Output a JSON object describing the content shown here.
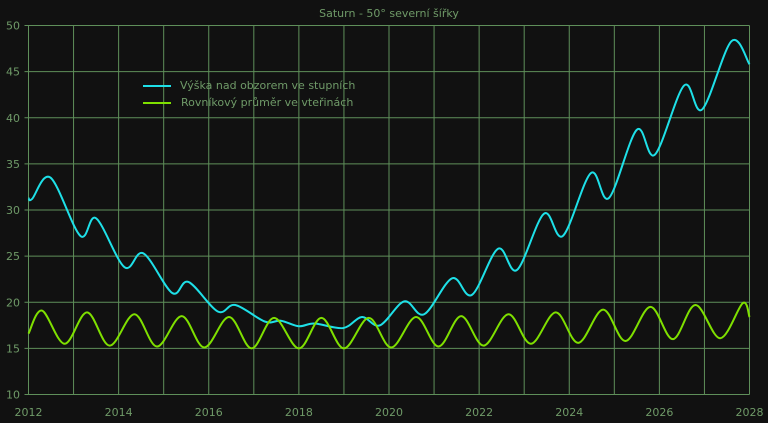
{
  "chart_data": {
    "type": "line",
    "title": "Saturn - 50° severní šířky",
    "xlabel": "",
    "ylabel": "",
    "xlim": [
      2012,
      2028
    ],
    "ylim": [
      10,
      50
    ],
    "grid": true,
    "legend_position": "top-left",
    "x_ticks": [
      "2012",
      "2014",
      "2016",
      "2018",
      "2020",
      "2022",
      "2024",
      "2026",
      "2028"
    ],
    "y_ticks": [
      "10",
      "15",
      "20",
      "25",
      "30",
      "35",
      "40",
      "45",
      "50"
    ],
    "colors": {
      "background": "#111111",
      "grid": "#5f8f5a",
      "text": "#6f9a68"
    },
    "series": [
      {
        "name": "Výška nad obzorem ve stupních",
        "color": "#1ee0e8",
        "points": [
          [
            2012.0,
            31.3
          ],
          [
            2012.08,
            31.2
          ],
          [
            2012.49,
            33.5
          ],
          [
            2013.15,
            27.2
          ],
          [
            2013.5,
            29.1
          ],
          [
            2014.13,
            23.8
          ],
          [
            2014.55,
            25.3
          ],
          [
            2015.19,
            21.0
          ],
          [
            2015.55,
            22.2
          ],
          [
            2016.2,
            19.0
          ],
          [
            2016.59,
            19.7
          ],
          [
            2017.25,
            17.9
          ],
          [
            2017.6,
            18.0
          ],
          [
            2018.0,
            17.4
          ],
          [
            2018.35,
            17.7
          ],
          [
            2018.98,
            17.2
          ],
          [
            2019.4,
            18.4
          ],
          [
            2019.8,
            17.5
          ],
          [
            2020.34,
            20.1
          ],
          [
            2020.78,
            18.7
          ],
          [
            2021.4,
            22.6
          ],
          [
            2021.84,
            20.8
          ],
          [
            2022.42,
            25.8
          ],
          [
            2022.84,
            23.5
          ],
          [
            2023.44,
            29.6
          ],
          [
            2023.86,
            27.2
          ],
          [
            2024.48,
            34.0
          ],
          [
            2024.88,
            31.3
          ],
          [
            2025.5,
            38.7
          ],
          [
            2025.9,
            36.0
          ],
          [
            2026.55,
            43.5
          ],
          [
            2026.95,
            40.9
          ],
          [
            2027.6,
            48.3
          ],
          [
            2028.0,
            45.8
          ]
        ]
      },
      {
        "name": "Rovníkový průměr ve vteřinách",
        "color": "#7fe000",
        "points": [
          [
            2012.0,
            16.6
          ],
          [
            2012.3,
            19.1
          ],
          [
            2012.8,
            15.5
          ],
          [
            2013.3,
            18.9
          ],
          [
            2013.8,
            15.3
          ],
          [
            2014.35,
            18.7
          ],
          [
            2014.85,
            15.2
          ],
          [
            2015.4,
            18.5
          ],
          [
            2015.9,
            15.1
          ],
          [
            2016.45,
            18.4
          ],
          [
            2016.95,
            15.0
          ],
          [
            2017.45,
            18.3
          ],
          [
            2018.0,
            15.0
          ],
          [
            2018.5,
            18.3
          ],
          [
            2019.0,
            15.0
          ],
          [
            2019.55,
            18.3
          ],
          [
            2020.05,
            15.1
          ],
          [
            2020.6,
            18.4
          ],
          [
            2021.1,
            15.2
          ],
          [
            2021.6,
            18.5
          ],
          [
            2022.1,
            15.3
          ],
          [
            2022.65,
            18.7
          ],
          [
            2023.15,
            15.5
          ],
          [
            2023.7,
            18.9
          ],
          [
            2024.2,
            15.6
          ],
          [
            2024.75,
            19.2
          ],
          [
            2025.25,
            15.8
          ],
          [
            2025.8,
            19.5
          ],
          [
            2026.3,
            16.0
          ],
          [
            2026.8,
            19.7
          ],
          [
            2027.35,
            16.1
          ],
          [
            2027.85,
            19.9
          ],
          [
            2028.0,
            18.4
          ]
        ]
      }
    ]
  }
}
